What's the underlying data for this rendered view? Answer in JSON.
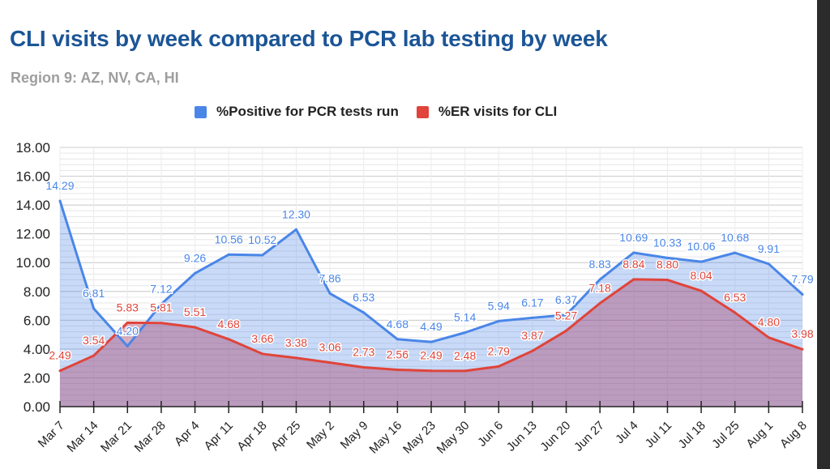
{
  "chart_data": {
    "type": "area",
    "title": "CLI visits by week compared to PCR lab testing by week",
    "subtitle": "Region 9: AZ, NV, CA, HI",
    "xlabel": "",
    "ylabel": "",
    "ylim": [
      0,
      18
    ],
    "yticks": [
      "0.00",
      "2.00",
      "4.00",
      "6.00",
      "8.00",
      "10.00",
      "12.00",
      "14.00",
      "16.00",
      "18.00"
    ],
    "grid": true,
    "legend_position": "top",
    "categories": [
      "Mar 7",
      "Mar 14",
      "Mar 21",
      "Mar 28",
      "Apr 4",
      "Apr 11",
      "Apr 18",
      "Apr 25",
      "May 2",
      "May 9",
      "May 16",
      "May 23",
      "May 30",
      "Jun 6",
      "Jun 13",
      "Jun 20",
      "Jun 27",
      "Jul 4",
      "Jul 11",
      "Jul 18",
      "Jul 25",
      "Aug 1",
      "Aug 8"
    ],
    "series": [
      {
        "name": "%Positive for PCR tests run",
        "color": "#4a86e8",
        "values": [
          14.29,
          6.81,
          4.2,
          7.12,
          9.26,
          10.56,
          10.52,
          12.3,
          7.86,
          6.53,
          4.68,
          4.49,
          5.14,
          5.94,
          6.17,
          6.37,
          8.83,
          10.69,
          10.33,
          10.06,
          10.68,
          9.91,
          7.79
        ],
        "labels": [
          "14.29",
          "6.81",
          "4.20",
          "7.12",
          "9.26",
          "10.56",
          "10.52",
          "12.30",
          "7.86",
          "6.53",
          "4.68",
          "4.49",
          "5.14",
          "5.94",
          "6.17",
          "6.37",
          "8.83",
          "10.69",
          "10.33",
          "10.06",
          "10.68",
          "9.91",
          "7.79"
        ]
      },
      {
        "name": "%ER visits for CLI",
        "color": "#e0443a",
        "values": [
          2.49,
          3.54,
          5.83,
          5.81,
          5.51,
          4.68,
          3.66,
          3.38,
          3.06,
          2.73,
          2.56,
          2.49,
          2.48,
          2.79,
          3.87,
          5.27,
          7.18,
          8.84,
          8.8,
          8.04,
          6.53,
          4.8,
          3.98
        ],
        "labels": [
          "2.49",
          "3.54",
          "5.83",
          "5.81",
          "5.51",
          "4.68",
          "3.66",
          "3.38",
          "3.06",
          "2.73",
          "2.56",
          "2.49",
          "2.48",
          "2.79",
          "3.87",
          "5.27",
          "7.18",
          "8.84",
          "8.80",
          "8.04",
          "6.53",
          "4.80",
          "3.98"
        ]
      }
    ]
  }
}
